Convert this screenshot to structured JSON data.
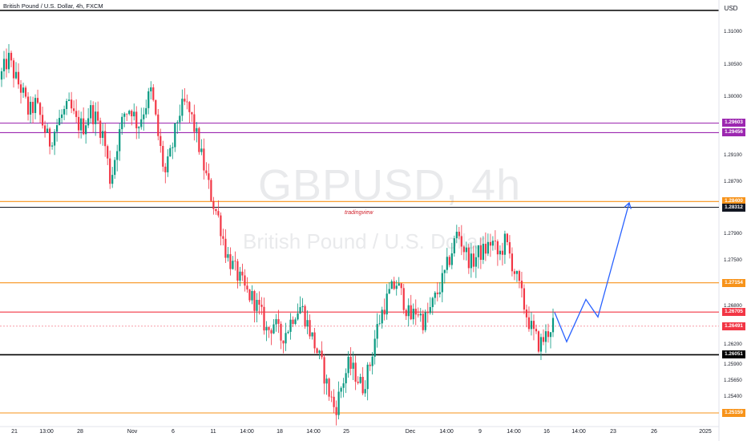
{
  "header": {
    "title": "British Pound / U.S. Dollar, 4h, FXCM",
    "currency": "USD"
  },
  "watermark": {
    "symbol": "GBPUSD, 4h",
    "description": "British Pound / U.S. Dollar",
    "brand": "tradingview"
  },
  "price_axis": {
    "min": 1.2495,
    "max": 1.3133,
    "ticks": [
      "1.31000",
      "1.30500",
      "1.30000",
      "1.29100",
      "1.28700",
      "1.27900",
      "1.27500",
      "1.26800",
      "1.26200",
      "1.25900",
      "1.25650",
      "1.25400"
    ]
  },
  "time_axis": {
    "labels": [
      "21",
      "13:00",
      "28",
      "Nov",
      "6",
      "11",
      "14:00",
      "18",
      "14:00",
      "25",
      "Dec",
      "14:00",
      "9",
      "14:00",
      "16",
      "14:00",
      "23",
      "26",
      "2025"
    ]
  },
  "levels": [
    {
      "label": "1.29603",
      "value": 1.29603,
      "color": "#9c27b0",
      "line": "#9c27b0"
    },
    {
      "label": "1.29456",
      "value": 1.29456,
      "color": "#9c27b0",
      "line": "#9c27b0"
    },
    {
      "label": "1.28400",
      "value": 1.284,
      "color": "#f7931a",
      "line": "#f7931a"
    },
    {
      "label": "1.28312",
      "value": 1.28312,
      "color": "#131722",
      "line": "#131722"
    },
    {
      "label": "1.27154",
      "value": 1.27154,
      "color": "#f7931a",
      "line": "#f7931a"
    },
    {
      "label": "1.26705",
      "value": 1.26705,
      "color": "#f23645",
      "line": "#f23645"
    },
    {
      "label": "1.26491",
      "value": 1.26491,
      "color": "#f23645",
      "line": "#f7a8b0"
    },
    {
      "label": "1.26051",
      "value": 1.26051,
      "color": "#000000",
      "line": "#000000"
    },
    {
      "label": "1.25159",
      "value": 1.25159,
      "color": "#f7931a",
      "line": "#f7931a"
    }
  ],
  "colors": {
    "up": "#089981",
    "down": "#f23645",
    "projection": "#2962ff",
    "top_line": "#000000"
  },
  "chart_data": {
    "type": "candlestick",
    "symbol": "GBPUSD",
    "timeframe": "4h",
    "source": "FXCM",
    "close_path": [
      1.3035,
      1.306,
      1.303,
      1.301,
      1.2975,
      1.299,
      1.296,
      1.293,
      1.2955,
      1.2975,
      1.2985,
      1.296,
      1.2955,
      1.298,
      1.2965,
      1.294,
      1.287,
      1.293,
      1.2975,
      1.2985,
      1.2955,
      1.2985,
      1.301,
      1.294,
      1.288,
      1.292,
      1.2975,
      1.299,
      1.2965,
      1.2925,
      1.288,
      1.284,
      1.281,
      1.276,
      1.274,
      1.272,
      1.27,
      1.269,
      1.267,
      1.264,
      1.2655,
      1.263,
      1.2645,
      1.267,
      1.268,
      1.265,
      1.262,
      1.259,
      1.255,
      1.252,
      1.256,
      1.259,
      1.2575,
      1.2555,
      1.2585,
      1.264,
      1.2675,
      1.27,
      1.2715,
      1.269,
      1.266,
      1.2675,
      1.2655,
      1.2675,
      1.27,
      1.2725,
      1.276,
      1.2795,
      1.2765,
      1.2745,
      1.276,
      1.2765,
      1.278,
      1.2755,
      1.278,
      1.2745,
      1.271,
      1.267,
      1.264,
      1.262,
      1.2635,
      1.2655
    ],
    "projection": [
      {
        "t": "Dec 17",
        "price": 1.267
      },
      {
        "t": "Dec 18",
        "price": 1.2625
      },
      {
        "t": "Dec 20",
        "price": 1.269
      },
      {
        "t": "Dec 23",
        "price": 1.2663
      },
      {
        "t": "Dec 27",
        "price": 1.2838
      }
    ]
  }
}
